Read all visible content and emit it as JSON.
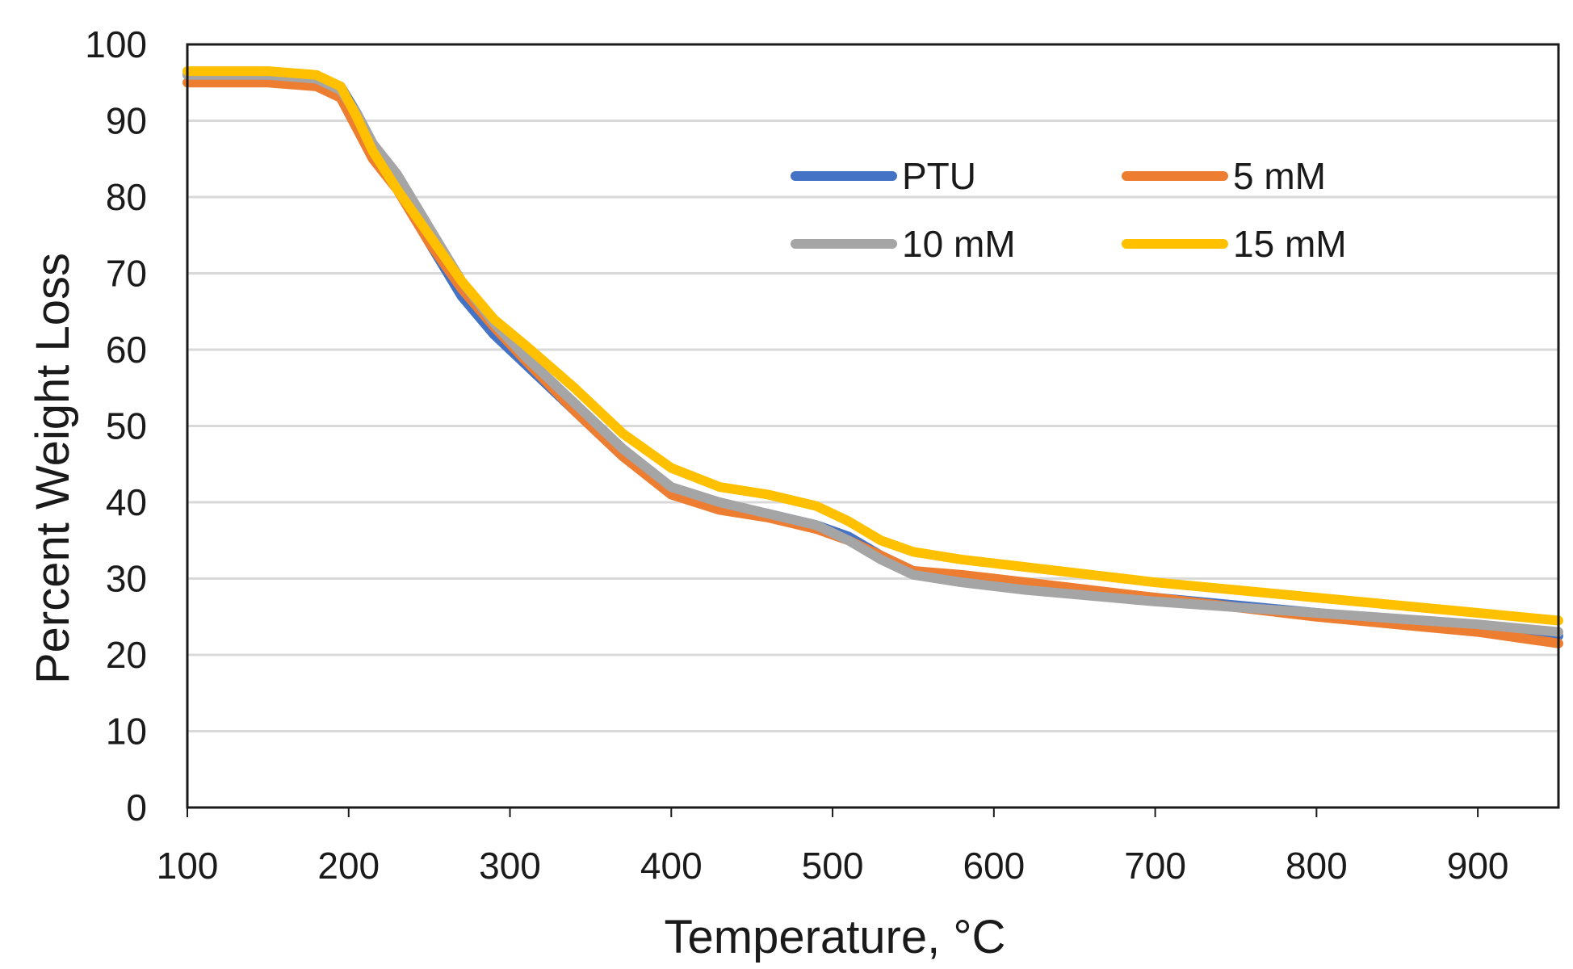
{
  "chart_data": {
    "type": "line",
    "title": "",
    "xlabel": "Temperature, °C",
    "ylabel": "Percent Weight Loss",
    "xlim": [
      100,
      950
    ],
    "ylim": [
      0,
      100
    ],
    "x_ticks": [
      100,
      200,
      300,
      400,
      500,
      600,
      700,
      800,
      900
    ],
    "y_ticks": [
      0,
      10,
      20,
      30,
      40,
      50,
      60,
      70,
      80,
      90,
      100
    ],
    "grid": "horizontal",
    "legend_position": "top-right",
    "series": [
      {
        "name": "PTU",
        "color": "#4472C4",
        "x": [
          100,
          150,
          180,
          195,
          205,
          215,
          230,
          250,
          270,
          290,
          310,
          340,
          370,
          400,
          430,
          460,
          490,
          510,
          530,
          550,
          580,
          620,
          700,
          800,
          900,
          950
        ],
        "y": [
          96,
          96,
          95.5,
          94.5,
          91,
          87,
          82,
          74,
          67,
          62,
          58,
          52,
          46,
          41.5,
          39.5,
          38.5,
          37,
          35.5,
          33,
          31,
          30,
          29,
          27.5,
          25.5,
          23.5,
          22.5
        ]
      },
      {
        "name": "5 mM",
        "color": "#ED7D31",
        "x": [
          100,
          150,
          180,
          195,
          205,
          215,
          230,
          250,
          270,
          290,
          310,
          340,
          370,
          400,
          430,
          460,
          490,
          510,
          530,
          550,
          580,
          620,
          700,
          800,
          900,
          950
        ],
        "y": [
          95,
          95,
          94.5,
          93,
          89,
          85,
          81,
          74,
          68,
          63,
          58.5,
          52,
          46,
          41,
          39,
          38,
          36.5,
          35,
          33,
          31,
          30.5,
          29.5,
          27.5,
          25,
          23,
          21.5
        ]
      },
      {
        "name": "10 mM",
        "color": "#A5A5A5",
        "x": [
          100,
          150,
          180,
          195,
          205,
          215,
          230,
          250,
          270,
          290,
          310,
          340,
          370,
          400,
          430,
          460,
          490,
          510,
          530,
          550,
          580,
          620,
          700,
          800,
          900,
          950
        ],
        "y": [
          96,
          96,
          95.5,
          94,
          91,
          87,
          83,
          76,
          69,
          63.5,
          59,
          53,
          47,
          42,
          40,
          38.5,
          37,
          35,
          32.5,
          30.5,
          29.5,
          28.5,
          27,
          25.5,
          24,
          23
        ]
      },
      {
        "name": "15 mM",
        "color": "#FFC000",
        "x": [
          100,
          150,
          180,
          195,
          205,
          215,
          230,
          250,
          270,
          290,
          310,
          340,
          370,
          400,
          430,
          460,
          490,
          510,
          530,
          550,
          580,
          620,
          700,
          800,
          900,
          950
        ],
        "y": [
          96.5,
          96.5,
          96,
          94.5,
          90.5,
          86,
          81,
          75,
          69,
          64,
          60.5,
          55,
          49,
          44.5,
          42,
          41,
          39.5,
          37.5,
          35,
          33.5,
          32.5,
          31.5,
          29.5,
          27.5,
          25.5,
          24.5
        ]
      }
    ]
  }
}
